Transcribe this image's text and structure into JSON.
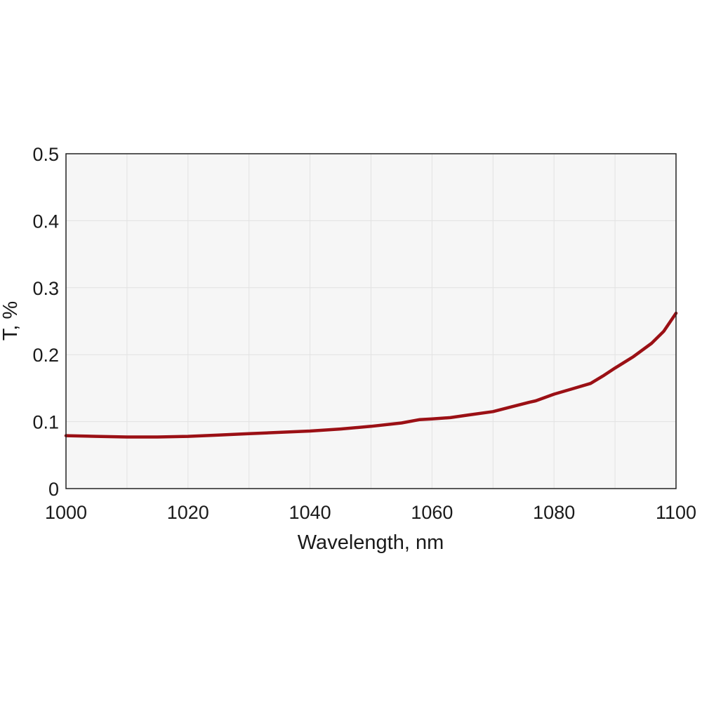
{
  "chart_data": {
    "type": "line",
    "title": "",
    "xlabel": "Wavelength, nm",
    "ylabel": "T, %",
    "xlim": [
      1000,
      1100
    ],
    "ylim": [
      0,
      0.5
    ],
    "x_ticks": [
      "1000",
      "1020",
      "1040",
      "1060",
      "1080",
      "1100"
    ],
    "y_ticks": [
      "0",
      "0.1",
      "0.2",
      "0.3",
      "0.4",
      "0.5"
    ],
    "grid": true,
    "legend": "none",
    "colors": {
      "line": "#9b1015",
      "plot_bg": "#f6f6f6",
      "grid": "#e2e2e2",
      "frame": "#222222"
    },
    "series": [
      {
        "x": [
          1000,
          1005,
          1010,
          1015,
          1020,
          1025,
          1030,
          1035,
          1040,
          1045,
          1050,
          1055,
          1058,
          1060,
          1063,
          1066,
          1070,
          1073,
          1076,
          1077,
          1080,
          1083,
          1086,
          1088,
          1090,
          1093,
          1096,
          1098,
          1100
        ],
        "y": [
          0.079,
          0.078,
          0.077,
          0.077,
          0.078,
          0.08,
          0.082,
          0.084,
          0.086,
          0.089,
          0.093,
          0.098,
          0.103,
          0.104,
          0.106,
          0.11,
          0.115,
          0.122,
          0.129,
          0.131,
          0.141,
          0.149,
          0.157,
          0.168,
          0.18,
          0.197,
          0.217,
          0.235,
          0.262
        ]
      }
    ]
  }
}
